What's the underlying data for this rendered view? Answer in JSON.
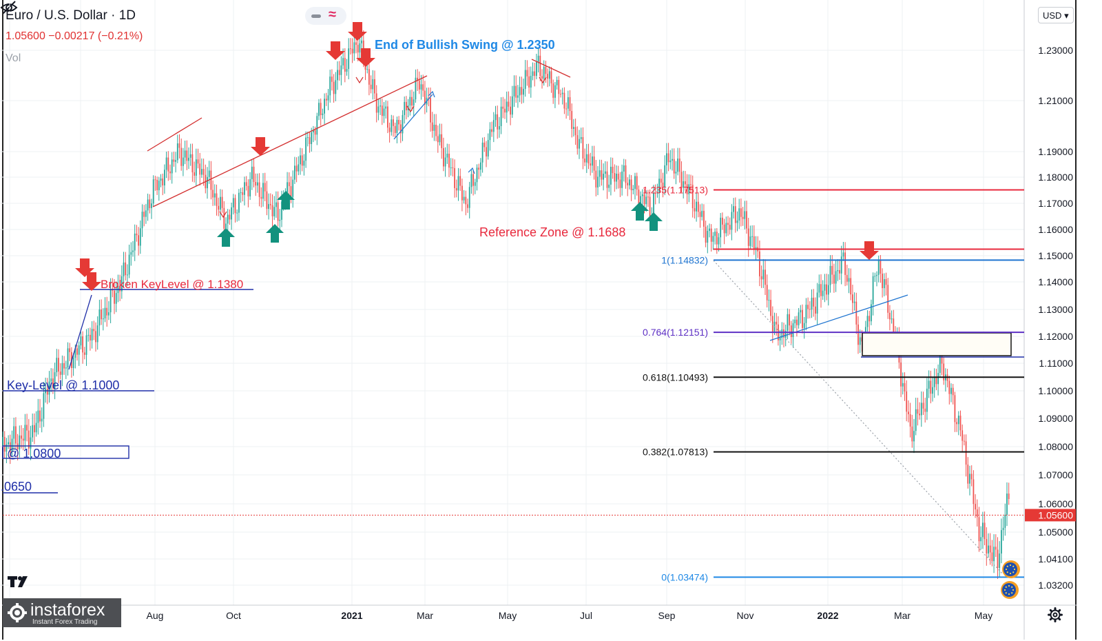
{
  "header": {
    "symbol": "Euro / U.S. Dollar · 1D",
    "quote": "1.05600 −0.00217 (−0.21%)",
    "vol_label": "Vol",
    "currency": "USD"
  },
  "icons": {
    "visibility": "eye-off-icon",
    "mode_line": "minus-icon",
    "mode_wave": "approx-icon",
    "settings": "gear-icon",
    "tv": "tradingview-logo-icon",
    "brand": "instaforex-logo"
  },
  "branding": {
    "name": "instaforex",
    "tagline": "Instant Forex Trading"
  },
  "colors": {
    "up": "#26a69a",
    "down": "#ef5350",
    "red_level": "#e8283c",
    "blue_level": "#1e74d0",
    "purple_level": "#5c2fc4",
    "navy_level": "#1f2fa8",
    "last_price_badge": "#e53935"
  },
  "chart_data": {
    "type": "candlestick",
    "title": "Euro / U.S. Dollar",
    "interval": "1D",
    "y_axis": {
      "ticks": [
        1.032,
        1.041,
        1.05,
        1.06,
        1.07,
        1.08,
        1.09,
        1.1,
        1.11,
        1.12,
        1.13,
        1.14,
        1.15,
        1.16,
        1.17,
        1.18,
        1.19,
        1.21,
        1.23
      ],
      "tick_labels": [
        "1.03200",
        "1.04100",
        "1.05000",
        "1.06000",
        "1.07000",
        "1.08000",
        "1.09000",
        "1.10000",
        "1.11000",
        "1.12000",
        "1.13000",
        "1.14000",
        "1.15000",
        "1.16000",
        "1.17000",
        "1.18000",
        "1.19000",
        "1.21000",
        "1.23000"
      ],
      "last_price": 1.056,
      "last_price_label": "1.05600"
    },
    "x_axis": {
      "labels": [
        {
          "text": "Aug",
          "date": "2020-08-01"
        },
        {
          "text": "Oct",
          "date": "2020-10-01"
        },
        {
          "text": "2021",
          "date": "2021-01-01"
        },
        {
          "text": "Mar",
          "date": "2021-03-01"
        },
        {
          "text": "May",
          "date": "2021-05-01"
        },
        {
          "text": "Jul",
          "date": "2021-07-01"
        },
        {
          "text": "Sep",
          "date": "2021-09-01"
        },
        {
          "text": "Nov",
          "date": "2021-11-01"
        },
        {
          "text": "2022",
          "date": "2022-01-01"
        },
        {
          "text": "Mar",
          "date": "2022-03-01"
        },
        {
          "text": "May",
          "date": "2022-05-01"
        }
      ]
    },
    "price_path": [
      [
        "2020-05-15",
        1.08
      ],
      [
        "2020-06-01",
        1.085
      ],
      [
        "2020-06-10",
        1.105
      ],
      [
        "2020-06-30",
        1.12
      ],
      [
        "2020-07-15",
        1.14
      ],
      [
        "2020-07-31",
        1.175
      ],
      [
        "2020-08-20",
        1.19
      ],
      [
        "2020-09-10",
        1.18
      ],
      [
        "2020-09-25",
        1.163
      ],
      [
        "2020-10-15",
        1.18
      ],
      [
        "2020-11-04",
        1.165
      ],
      [
        "2020-11-25",
        1.19
      ],
      [
        "2020-12-15",
        1.215
      ],
      [
        "2021-01-06",
        1.234
      ],
      [
        "2021-01-20",
        1.21
      ],
      [
        "2021-02-05",
        1.198
      ],
      [
        "2021-02-25",
        1.218
      ],
      [
        "2021-03-10",
        1.195
      ],
      [
        "2021-03-31",
        1.17
      ],
      [
        "2021-04-20",
        1.2
      ],
      [
        "2021-05-10",
        1.214
      ],
      [
        "2021-05-25",
        1.224
      ],
      [
        "2021-06-15",
        1.21
      ],
      [
        "2021-06-25",
        1.193
      ],
      [
        "2021-07-10",
        1.18
      ],
      [
        "2021-07-31",
        1.18
      ],
      [
        "2021-08-20",
        1.168
      ],
      [
        "2021-09-03",
        1.188
      ],
      [
        "2021-09-20",
        1.173
      ],
      [
        "2021-10-05",
        1.156
      ],
      [
        "2021-10-28",
        1.167
      ],
      [
        "2021-11-10",
        1.15
      ],
      [
        "2021-11-24",
        1.12
      ],
      [
        "2021-12-15",
        1.128
      ],
      [
        "2022-01-14",
        1.148
      ],
      [
        "2022-01-28",
        1.115
      ],
      [
        "2022-02-10",
        1.148
      ],
      [
        "2022-02-24",
        1.118
      ],
      [
        "2022-03-07",
        1.085
      ],
      [
        "2022-03-31",
        1.11
      ],
      [
        "2022-04-14",
        1.085
      ],
      [
        "2022-04-28",
        1.05
      ],
      [
        "2022-05-12",
        1.04
      ],
      [
        "2022-05-25",
        1.07
      ]
    ],
    "levels": [
      {
        "label": "1.235(1.17513)",
        "value": 1.17513,
        "from": "2021-08-10",
        "color": "#e8283c"
      },
      {
        "label": "",
        "value": 1.1525,
        "from": "2021-10-08",
        "color": "#e8283c"
      },
      {
        "label": "1(1.14832)",
        "value": 1.14832,
        "from": "2021-10-08",
        "color": "#1e74d0"
      },
      {
        "label": "0.764(1.12151)",
        "value": 1.12151,
        "from": "2021-10-08",
        "color": "#5c2fc4"
      },
      {
        "label": "0.618(1.10493)",
        "value": 1.10493,
        "from": "2021-10-08",
        "color": "#111111"
      },
      {
        "label": "0.382(1.07813)",
        "value": 1.07813,
        "from": "2021-10-08",
        "color": "#111111"
      },
      {
        "label": "0(1.03474)",
        "value": 1.03474,
        "from": "2021-10-08",
        "color": "#1e88e5"
      }
    ],
    "annotations": [
      {
        "text": "End of Bullish Swing @ 1.2350",
        "color": "#1e88e5"
      },
      {
        "text": "Reference Zone @ 1.1688",
        "color": "#e8283c"
      },
      {
        "text": "Broken KeyLevel @ 1.1380",
        "color": "#e8283c"
      },
      {
        "text": "Key-Level @ 1.1000",
        "color": "#1f2fa8"
      },
      {
        "text": "@ 1.0800",
        "color": "#1f2fa8"
      },
      {
        "text": ".0650",
        "color": "#1f2fa8"
      }
    ],
    "grid": true
  }
}
